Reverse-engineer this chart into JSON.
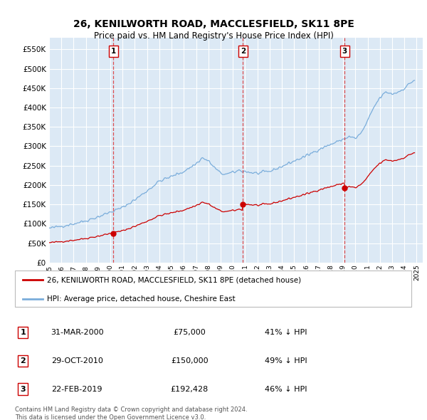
{
  "title": "26, KENILWORTH ROAD, MACCLESFIELD, SK11 8PE",
  "subtitle": "Price paid vs. HM Land Registry's House Price Index (HPI)",
  "plot_bg_color": "#dce9f5",
  "grid_color": "#ffffff",
  "ylim": [
    0,
    580000
  ],
  "yticks": [
    0,
    50000,
    100000,
    150000,
    200000,
    250000,
    300000,
    350000,
    400000,
    450000,
    500000,
    550000
  ],
  "ytick_labels": [
    "£0",
    "£50K",
    "£100K",
    "£150K",
    "£200K",
    "£250K",
    "£300K",
    "£350K",
    "£400K",
    "£450K",
    "£500K",
    "£550K"
  ],
  "xlim_start": 1995.0,
  "xlim_end": 2025.5,
  "sale_color": "#cc0000",
  "hpi_color": "#7aaddb",
  "sale_label": "26, KENILWORTH ROAD, MACCLESFIELD, SK11 8PE (detached house)",
  "hpi_label": "HPI: Average price, detached house, Cheshire East",
  "transactions": [
    {
      "num": 1,
      "date_label": "31-MAR-2000",
      "date_x": 2000.25,
      "price": 75000,
      "pct": "41%",
      "marker_y": 75000
    },
    {
      "num": 2,
      "date_label": "29-OCT-2010",
      "date_x": 2010.83,
      "price": 150000,
      "pct": "49%",
      "marker_y": 150000
    },
    {
      "num": 3,
      "date_label": "22-FEB-2019",
      "date_x": 2019.13,
      "price": 192428,
      "pct": "46%",
      "marker_y": 192428
    }
  ],
  "footer": "Contains HM Land Registry data © Crown copyright and database right 2024.\nThis data is licensed under the Open Government Licence v3.0."
}
